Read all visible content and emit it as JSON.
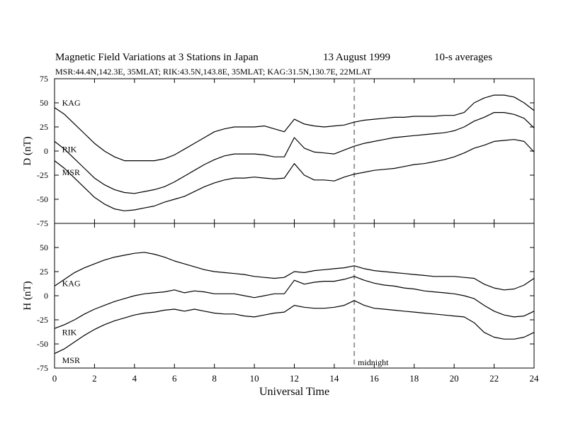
{
  "header": {
    "title": "Magnetic Field Variations at 3 Stations in Japan",
    "date": "13  August  1999",
    "averaging": "10-s averages",
    "stations_line": "MSR:44.4N,142.3E, 35MLAT;   RIK:43.5N,143.8E, 35MLAT;   KAG:31.5N,130.7E, 22MLAT"
  },
  "chart_data": [
    {
      "type": "line",
      "panel": "top",
      "ylabel": "D (nT)",
      "ylim": [
        -75,
        75
      ],
      "yticks": [
        75,
        50,
        25,
        0,
        -25,
        -50,
        -75
      ],
      "xlim": [
        0,
        24
      ],
      "xticks": [
        0,
        2,
        4,
        6,
        8,
        10,
        12,
        14,
        16,
        18,
        20,
        22,
        24
      ],
      "midnight_marker_ut": 15,
      "series": [
        {
          "name": "KAG",
          "label_ut": 0.2,
          "label_value": 50,
          "x": [
            0,
            0.5,
            1,
            1.5,
            2,
            2.5,
            3,
            3.5,
            4,
            4.5,
            5,
            5.5,
            6,
            6.5,
            7,
            7.5,
            8,
            8.5,
            9,
            9.5,
            10,
            10.5,
            11,
            11.5,
            12,
            12.5,
            13,
            13.5,
            14,
            14.5,
            15,
            15.5,
            16,
            16.5,
            17,
            17.5,
            18,
            18.5,
            19,
            19.5,
            20,
            20.5,
            21,
            21.5,
            22,
            22.5,
            23,
            23.5,
            24
          ],
          "y": [
            45,
            38,
            28,
            18,
            8,
            0,
            -6,
            -10,
            -10,
            -10,
            -10,
            -8,
            -4,
            2,
            8,
            14,
            20,
            23,
            25,
            25,
            25,
            26,
            23,
            20,
            33,
            28,
            26,
            25,
            26,
            27,
            30,
            32,
            33,
            34,
            35,
            35,
            36,
            36,
            36,
            37,
            37,
            40,
            50,
            55,
            58,
            58,
            56,
            50,
            42
          ]
        },
        {
          "name": "RIK",
          "label_ut": 0.2,
          "label_value": 2,
          "x": [
            0,
            0.5,
            1,
            1.5,
            2,
            2.5,
            3,
            3.5,
            4,
            4.5,
            5,
            5.5,
            6,
            6.5,
            7,
            7.5,
            8,
            8.5,
            9,
            9.5,
            10,
            10.5,
            11,
            11.5,
            12,
            12.5,
            13,
            13.5,
            14,
            14.5,
            15,
            15.5,
            16,
            16.5,
            17,
            17.5,
            18,
            18.5,
            19,
            19.5,
            20,
            20.5,
            21,
            21.5,
            22,
            22.5,
            23,
            23.5,
            24
          ],
          "y": [
            10,
            2,
            -8,
            -18,
            -28,
            -35,
            -40,
            -43,
            -44,
            -42,
            -40,
            -37,
            -32,
            -26,
            -20,
            -14,
            -9,
            -5,
            -3,
            -3,
            -3,
            -4,
            -6,
            -6,
            14,
            3,
            -1,
            -2,
            -3,
            1,
            5,
            8,
            10,
            12,
            14,
            15,
            16,
            17,
            18,
            19,
            21,
            25,
            31,
            35,
            40,
            40,
            38,
            34,
            24
          ]
        },
        {
          "name": "MSR",
          "label_ut": 0.2,
          "label_value": -22,
          "x": [
            0,
            0.5,
            1,
            1.5,
            2,
            2.5,
            3,
            3.5,
            4,
            4.5,
            5,
            5.5,
            6,
            6.5,
            7,
            7.5,
            8,
            8.5,
            9,
            9.5,
            10,
            10.5,
            11,
            11.5,
            12,
            12.5,
            13,
            13.5,
            14,
            14.5,
            15,
            15.5,
            16,
            16.5,
            17,
            17.5,
            18,
            18.5,
            19,
            19.5,
            20,
            20.5,
            21,
            21.5,
            22,
            22.5,
            23,
            23.5,
            24
          ],
          "y": [
            -10,
            -18,
            -28,
            -38,
            -48,
            -55,
            -60,
            -62,
            -61,
            -59,
            -57,
            -53,
            -50,
            -47,
            -42,
            -37,
            -33,
            -30,
            -28,
            -28,
            -27,
            -28,
            -29,
            -28,
            -13,
            -25,
            -30,
            -30,
            -31,
            -27,
            -24,
            -22,
            -20,
            -19,
            -18,
            -16,
            -14,
            -13,
            -11,
            -9,
            -6,
            -2,
            3,
            6,
            10,
            11,
            12,
            10,
            -1
          ]
        }
      ]
    },
    {
      "type": "line",
      "panel": "bottom",
      "ylabel": "H (nT)",
      "xlabel": "Universal Time",
      "ylim": [
        -75,
        75
      ],
      "yticks": [
        75,
        50,
        25,
        0,
        -25,
        -50,
        -75
      ],
      "xlim": [
        0,
        24
      ],
      "xticks": [
        0,
        2,
        4,
        6,
        8,
        10,
        12,
        14,
        16,
        18,
        20,
        22,
        24
      ],
      "midnight_marker_ut": 15,
      "annotation": "midnight",
      "series": [
        {
          "name": "KAG",
          "label_ut": 0.2,
          "label_value": 13,
          "x": [
            0,
            0.5,
            1,
            1.5,
            2,
            2.5,
            3,
            3.5,
            4,
            4.5,
            5,
            5.5,
            6,
            6.5,
            7,
            7.5,
            8,
            8.5,
            9,
            9.5,
            10,
            10.5,
            11,
            11.5,
            12,
            12.5,
            13,
            13.5,
            14,
            14.5,
            15,
            15.5,
            16,
            16.5,
            17,
            17.5,
            18,
            18.5,
            19,
            19.5,
            20,
            20.5,
            21,
            21.5,
            22,
            22.5,
            23,
            23.5,
            24
          ],
          "y": [
            10,
            17,
            24,
            29,
            33,
            37,
            40,
            42,
            44,
            45,
            43,
            40,
            36,
            33,
            30,
            27,
            25,
            24,
            23,
            22,
            20,
            19,
            18,
            19,
            25,
            24,
            26,
            27,
            28,
            29,
            31,
            28,
            26,
            25,
            24,
            23,
            22,
            21,
            20,
            20,
            20,
            19,
            18,
            12,
            8,
            6,
            7,
            11,
            18
          ]
        },
        {
          "name": "RIK",
          "label_ut": 0.2,
          "label_value": -38,
          "x": [
            0,
            0.5,
            1,
            1.5,
            2,
            2.5,
            3,
            3.5,
            4,
            4.5,
            5,
            5.5,
            6,
            6.5,
            7,
            7.5,
            8,
            8.5,
            9,
            9.5,
            10,
            10.5,
            11,
            11.5,
            12,
            12.5,
            13,
            13.5,
            14,
            14.5,
            15,
            15.5,
            16,
            16.5,
            17,
            17.5,
            18,
            18.5,
            19,
            19.5,
            20,
            20.5,
            21,
            21.5,
            22,
            22.5,
            23,
            23.5,
            24
          ],
          "y": [
            -34,
            -30,
            -25,
            -19,
            -14,
            -10,
            -6,
            -3,
            0,
            2,
            3,
            4,
            6,
            3,
            5,
            4,
            2,
            2,
            2,
            0,
            -2,
            0,
            2,
            2,
            16,
            12,
            14,
            15,
            15,
            17,
            20,
            16,
            13,
            11,
            10,
            8,
            7,
            5,
            4,
            3,
            2,
            0,
            -3,
            -10,
            -16,
            -20,
            -22,
            -21,
            -16
          ]
        },
        {
          "name": "MSR",
          "label_ut": 0.2,
          "label_value": -67,
          "x": [
            0,
            0.5,
            1,
            1.5,
            2,
            2.5,
            3,
            3.5,
            4,
            4.5,
            5,
            5.5,
            6,
            6.5,
            7,
            7.5,
            8,
            8.5,
            9,
            9.5,
            10,
            10.5,
            11,
            11.5,
            12,
            12.5,
            13,
            13.5,
            14,
            14.5,
            15,
            15.5,
            16,
            16.5,
            17,
            17.5,
            18,
            18.5,
            19,
            19.5,
            20,
            20.5,
            21,
            21.5,
            22,
            22.5,
            23,
            23.5,
            24
          ],
          "y": [
            -60,
            -55,
            -48,
            -41,
            -35,
            -30,
            -26,
            -23,
            -20,
            -18,
            -17,
            -15,
            -14,
            -16,
            -14,
            -16,
            -18,
            -19,
            -19,
            -21,
            -22,
            -20,
            -18,
            -17,
            -10,
            -12,
            -13,
            -13,
            -12,
            -10,
            -5,
            -10,
            -13,
            -14,
            -15,
            -16,
            -17,
            -18,
            -19,
            -20,
            -21,
            -22,
            -28,
            -38,
            -43,
            -45,
            -45,
            -43,
            -38
          ]
        }
      ]
    }
  ]
}
